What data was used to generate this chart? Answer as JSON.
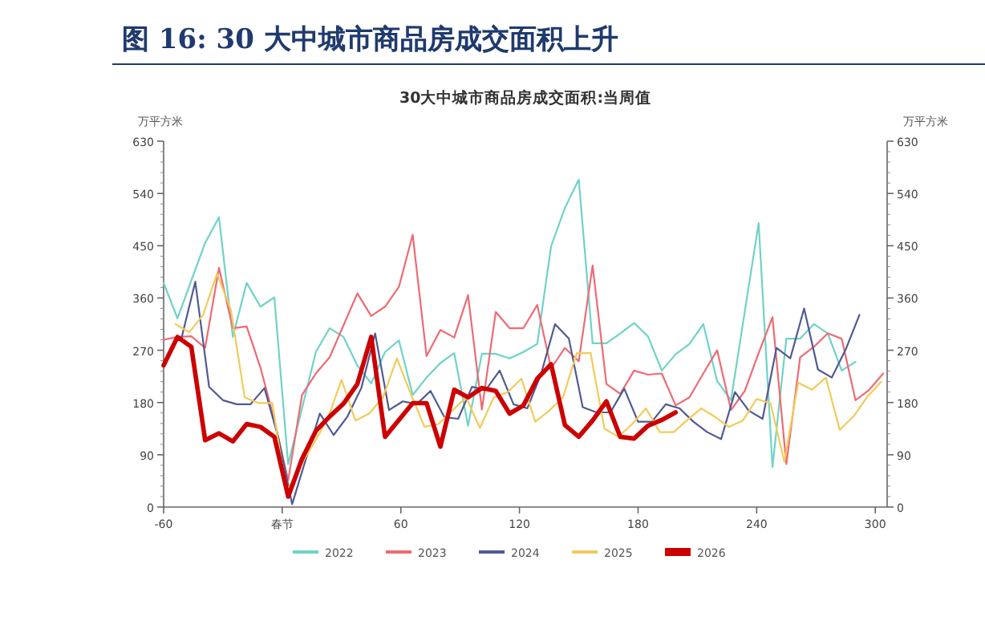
{
  "chart_data": {
    "type": "line",
    "title": "图 16:    30 大中城市商品房成交面积上升",
    "subtitle": "30大中城市商品房成交面积:当周值",
    "ylabel": "万平方米",
    "y2label": "万平方米",
    "xlim": [
      -60,
      306
    ],
    "xticks": [
      -60,
      {
        "value": 0,
        "label": "春节"
      },
      60,
      120,
      180,
      240,
      300
    ],
    "ylim": [
      0,
      630
    ],
    "yticks": [
      0,
      90,
      180,
      270,
      360,
      450,
      540,
      630
    ],
    "y2lim": [
      0,
      630
    ],
    "y2ticks": [
      0,
      90,
      180,
      270,
      360,
      450,
      540,
      630
    ],
    "legend": "bottom",
    "grid": false,
    "marker": "none",
    "series": [
      {
        "name": "2022",
        "color": "#6fd3c7",
        "x": [
          -60,
          -53,
          -46,
          -39,
          -32,
          -25,
          -18,
          -11,
          -4,
          3,
          10,
          17,
          24,
          31,
          38,
          45,
          52,
          59,
          66,
          73,
          80,
          87,
          94,
          101,
          108,
          115,
          122,
          129,
          136,
          143,
          150,
          157,
          164,
          171,
          178,
          185,
          192,
          199,
          206,
          213,
          220,
          227,
          234,
          241,
          248,
          255,
          262,
          269,
          276,
          283,
          290
        ],
        "values": [
          386,
          325,
          390,
          455,
          499,
          293,
          386,
          345,
          361,
          74,
          170,
          267,
          308,
          293,
          244,
          213,
          267,
          287,
          193,
          223,
          248,
          265,
          140,
          264,
          264,
          256,
          267,
          281,
          449,
          515,
          564,
          282,
          282,
          299,
          317,
          294,
          235,
          263,
          281,
          315,
          217,
          184,
          337,
          489,
          69,
          290,
          290,
          315,
          299,
          235,
          250
        ]
      },
      {
        "name": "2023",
        "color": "#ee6b73",
        "x": [
          -60,
          -53,
          -46,
          -39,
          -32,
          -25,
          -18,
          -11,
          -4,
          3,
          10,
          17,
          24,
          31,
          38,
          45,
          52,
          59,
          66,
          73,
          80,
          87,
          94,
          101,
          108,
          115,
          122,
          129,
          136,
          143,
          150,
          157,
          164,
          171,
          178,
          185,
          192,
          199,
          206,
          213,
          220,
          227,
          234,
          241,
          248,
          255,
          262,
          269,
          276,
          283,
          290,
          297,
          304
        ],
        "values": [
          288,
          293,
          294,
          274,
          412,
          308,
          311,
          240,
          150,
          46,
          193,
          230,
          258,
          313,
          368,
          329,
          345,
          379,
          469,
          260,
          305,
          292,
          365,
          168,
          336,
          308,
          308,
          348,
          239,
          274,
          251,
          416,
          212,
          195,
          235,
          228,
          230,
          175,
          189,
          230,
          270,
          167,
          200,
          265,
          327,
          74,
          258,
          276,
          299,
          290,
          184,
          202,
          230
        ]
      },
      {
        "name": "2024",
        "color": "#505a93",
        "x": [
          -51,
          -44,
          -37,
          -30,
          -23,
          -16,
          -9,
          -2,
          5,
          19,
          26,
          33,
          40,
          47,
          54,
          61,
          68,
          75,
          82,
          89,
          96,
          103,
          110,
          117,
          124,
          131,
          138,
          145,
          152,
          159,
          166,
          173,
          180,
          187,
          194,
          201,
          208,
          215,
          222,
          229,
          236,
          243,
          250,
          257,
          264,
          271,
          278,
          285,
          292
        ],
        "values": [
          290,
          388,
          207,
          184,
          177,
          177,
          205,
          120,
          5,
          161,
          124,
          156,
          205,
          299,
          167,
          182,
          177,
          200,
          155,
          152,
          207,
          202,
          235,
          177,
          170,
          230,
          315,
          290,
          172,
          163,
          163,
          204,
          147,
          147,
          177,
          170,
          147,
          129,
          117,
          198,
          166,
          152,
          274,
          256,
          342,
          237,
          223,
          271,
          331
        ]
      },
      {
        "name": "2025",
        "color": "#f2cb5a",
        "x": [
          -54,
          -47,
          -40,
          -33,
          -26,
          -19,
          -12,
          -5,
          2,
          9,
          16,
          23,
          30,
          37,
          44,
          51,
          58,
          65,
          72,
          79,
          86,
          93,
          100,
          107,
          114,
          121,
          128,
          135,
          142,
          149,
          156,
          163,
          170,
          177,
          184,
          191,
          198,
          205,
          212,
          219,
          226,
          233,
          240,
          247,
          254,
          261,
          268,
          275,
          282,
          289,
          296,
          303
        ],
        "values": [
          315,
          301,
          331,
          402,
          340,
          189,
          179,
          179,
          25,
          70,
          110,
          152,
          219,
          149,
          161,
          189,
          256,
          195,
          138,
          143,
          166,
          189,
          136,
          189,
          198,
          221,
          147,
          166,
          189,
          265,
          265,
          135,
          121,
          143,
          170,
          129,
          129,
          150,
          170,
          155,
          138,
          149,
          186,
          179,
          78,
          214,
          202,
          223,
          133,
          156,
          190,
          216
        ]
      },
      {
        "name": "2026",
        "color": "#cc0000",
        "x": [
          -60,
          -53,
          -46,
          -39,
          -32,
          -25,
          -18,
          -11,
          -4,
          3,
          10,
          17,
          24,
          31,
          38,
          45,
          52,
          59,
          66,
          73,
          80,
          87,
          94,
          101,
          108,
          115,
          122,
          129,
          136,
          143,
          150,
          157,
          164,
          171,
          178,
          185,
          192,
          199
        ],
        "values": [
          244,
          293,
          276,
          115,
          127,
          113,
          143,
          138,
          121,
          18,
          83,
          131,
          156,
          178,
          212,
          293,
          121,
          150,
          179,
          179,
          104,
          202,
          189,
          205,
          200,
          161,
          175,
          221,
          246,
          141,
          121,
          149,
          182,
          121,
          118,
          140,
          150,
          163
        ]
      }
    ]
  }
}
